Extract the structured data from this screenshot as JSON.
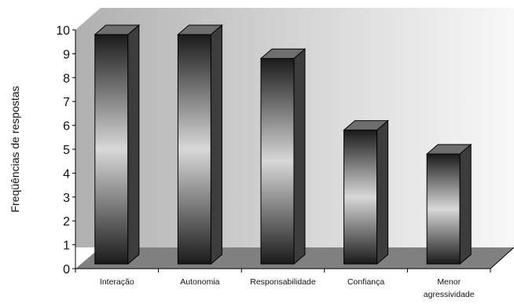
{
  "chart_data": {
    "type": "bar",
    "style": "3d-column",
    "title": "",
    "xlabel": "",
    "ylabel": "Freqüências de respostas",
    "categories": [
      [
        "Interação"
      ],
      [
        "Autonomia"
      ],
      [
        "Responsabilidade"
      ],
      [
        "Confiança"
      ],
      [
        "Menor",
        "agressividade"
      ]
    ],
    "values": [
      10,
      10,
      9,
      6,
      5
    ],
    "ylim": [
      0,
      10
    ],
    "yticks": [
      0,
      1,
      2,
      3,
      4,
      5,
      6,
      7,
      8,
      9,
      10
    ],
    "grid": false,
    "legend": "none",
    "colors": {
      "bar_gradient": [
        "#1a1a1a",
        "#d8d8d8",
        "#1a1a1a"
      ],
      "bar_side": "#3c3c3c",
      "bar_top": "#6e6e6e",
      "back_wall": [
        "#b4b4b4",
        "#f6f6f6"
      ],
      "floor": "#808080"
    }
  }
}
